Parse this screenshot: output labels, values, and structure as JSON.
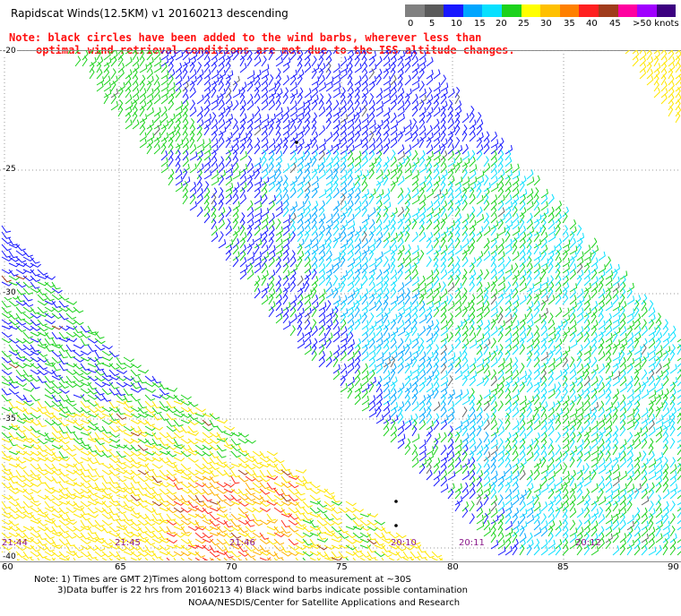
{
  "title": "Rapidscat Winds(12.5KM) v1 20160213 descending",
  "note": {
    "line1": "Note: black circles have been added to the wind barbs, wherever less than",
    "line2": "optimal wind retrieval conditions are met due to the ISS altitude changes."
  },
  "legend": {
    "colors": [
      "#808080",
      "#5a5a5a",
      "#1818ff",
      "#00a6ff",
      "#08e0ff",
      "#1cd21c",
      "#ffff00",
      "#ffc000",
      "#ff8000",
      "#ff2020",
      "#a03c1c",
      "#ff00a0",
      "#a000ff",
      "#3c0080"
    ],
    "labels": [
      "0",
      "5",
      "10",
      "15",
      "20",
      "25",
      "30",
      "35",
      "40",
      "45",
      ">50 knots"
    ]
  },
  "map": {
    "lat_labels": [
      "-20",
      "-25",
      "-30",
      "-35",
      "-40"
    ],
    "lon_labels": [
      "60",
      "65",
      "70",
      "75",
      "80",
      "85",
      "90"
    ],
    "times": [
      "21:44",
      "21:45",
      "21:46",
      "20:10",
      "20:11",
      "20:12"
    ]
  },
  "footer": {
    "line1": "Note: 1) Times are GMT 2)Times along bottom correspond to measurement at ~30S",
    "line2": "3)Data buffer is 22 hrs from 20160213 4) Black wind barbs indicate possible contamination",
    "line3": "NOAA/NESDIS/Center for Satellite Applications and Research"
  }
}
